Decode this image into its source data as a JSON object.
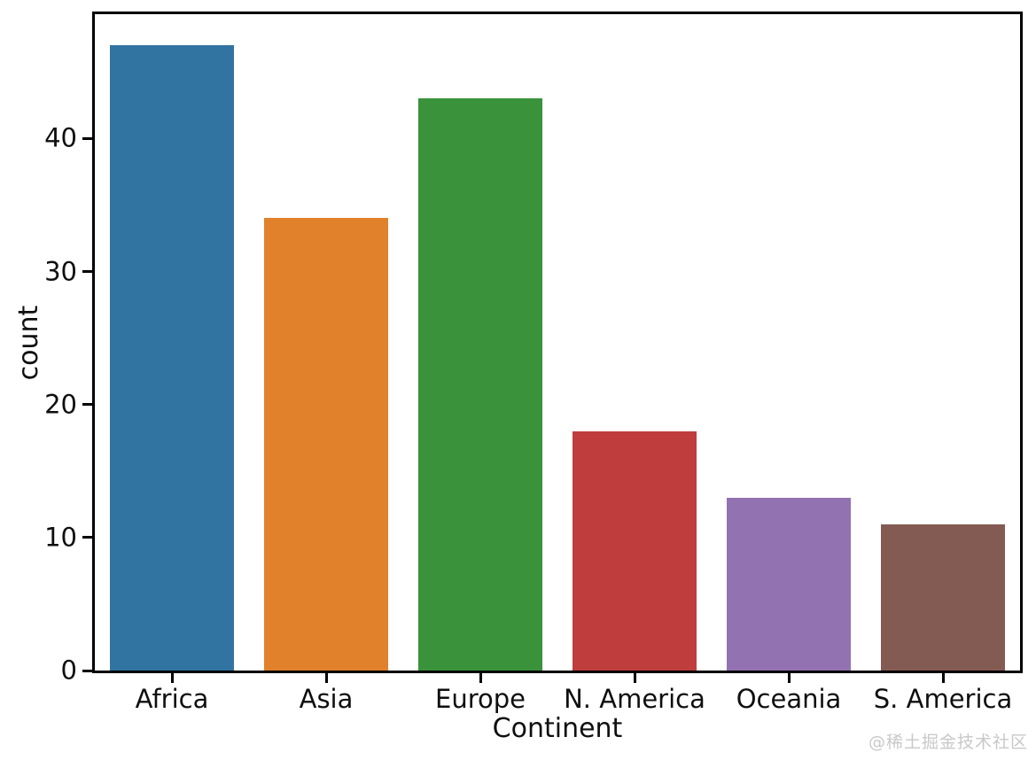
{
  "watermark": "@稀土掘金技术社区",
  "chart_data": {
    "type": "bar",
    "title": "",
    "xlabel": "Continent",
    "ylabel": "count",
    "categories": [
      "Africa",
      "Asia",
      "Europe",
      "N. America",
      "Oceania",
      "S. America"
    ],
    "values": [
      47,
      34,
      43,
      18,
      13,
      11
    ],
    "colors": [
      "#3274a1",
      "#e1812c",
      "#3a923a",
      "#c03d3e",
      "#9372b2",
      "#845b53"
    ],
    "yticks": [
      0,
      10,
      20,
      30,
      40
    ],
    "ylim": [
      0,
      49.35
    ],
    "bar_width_fraction": 0.8,
    "grid": false,
    "legend": null,
    "axis_color": "#000000"
  }
}
